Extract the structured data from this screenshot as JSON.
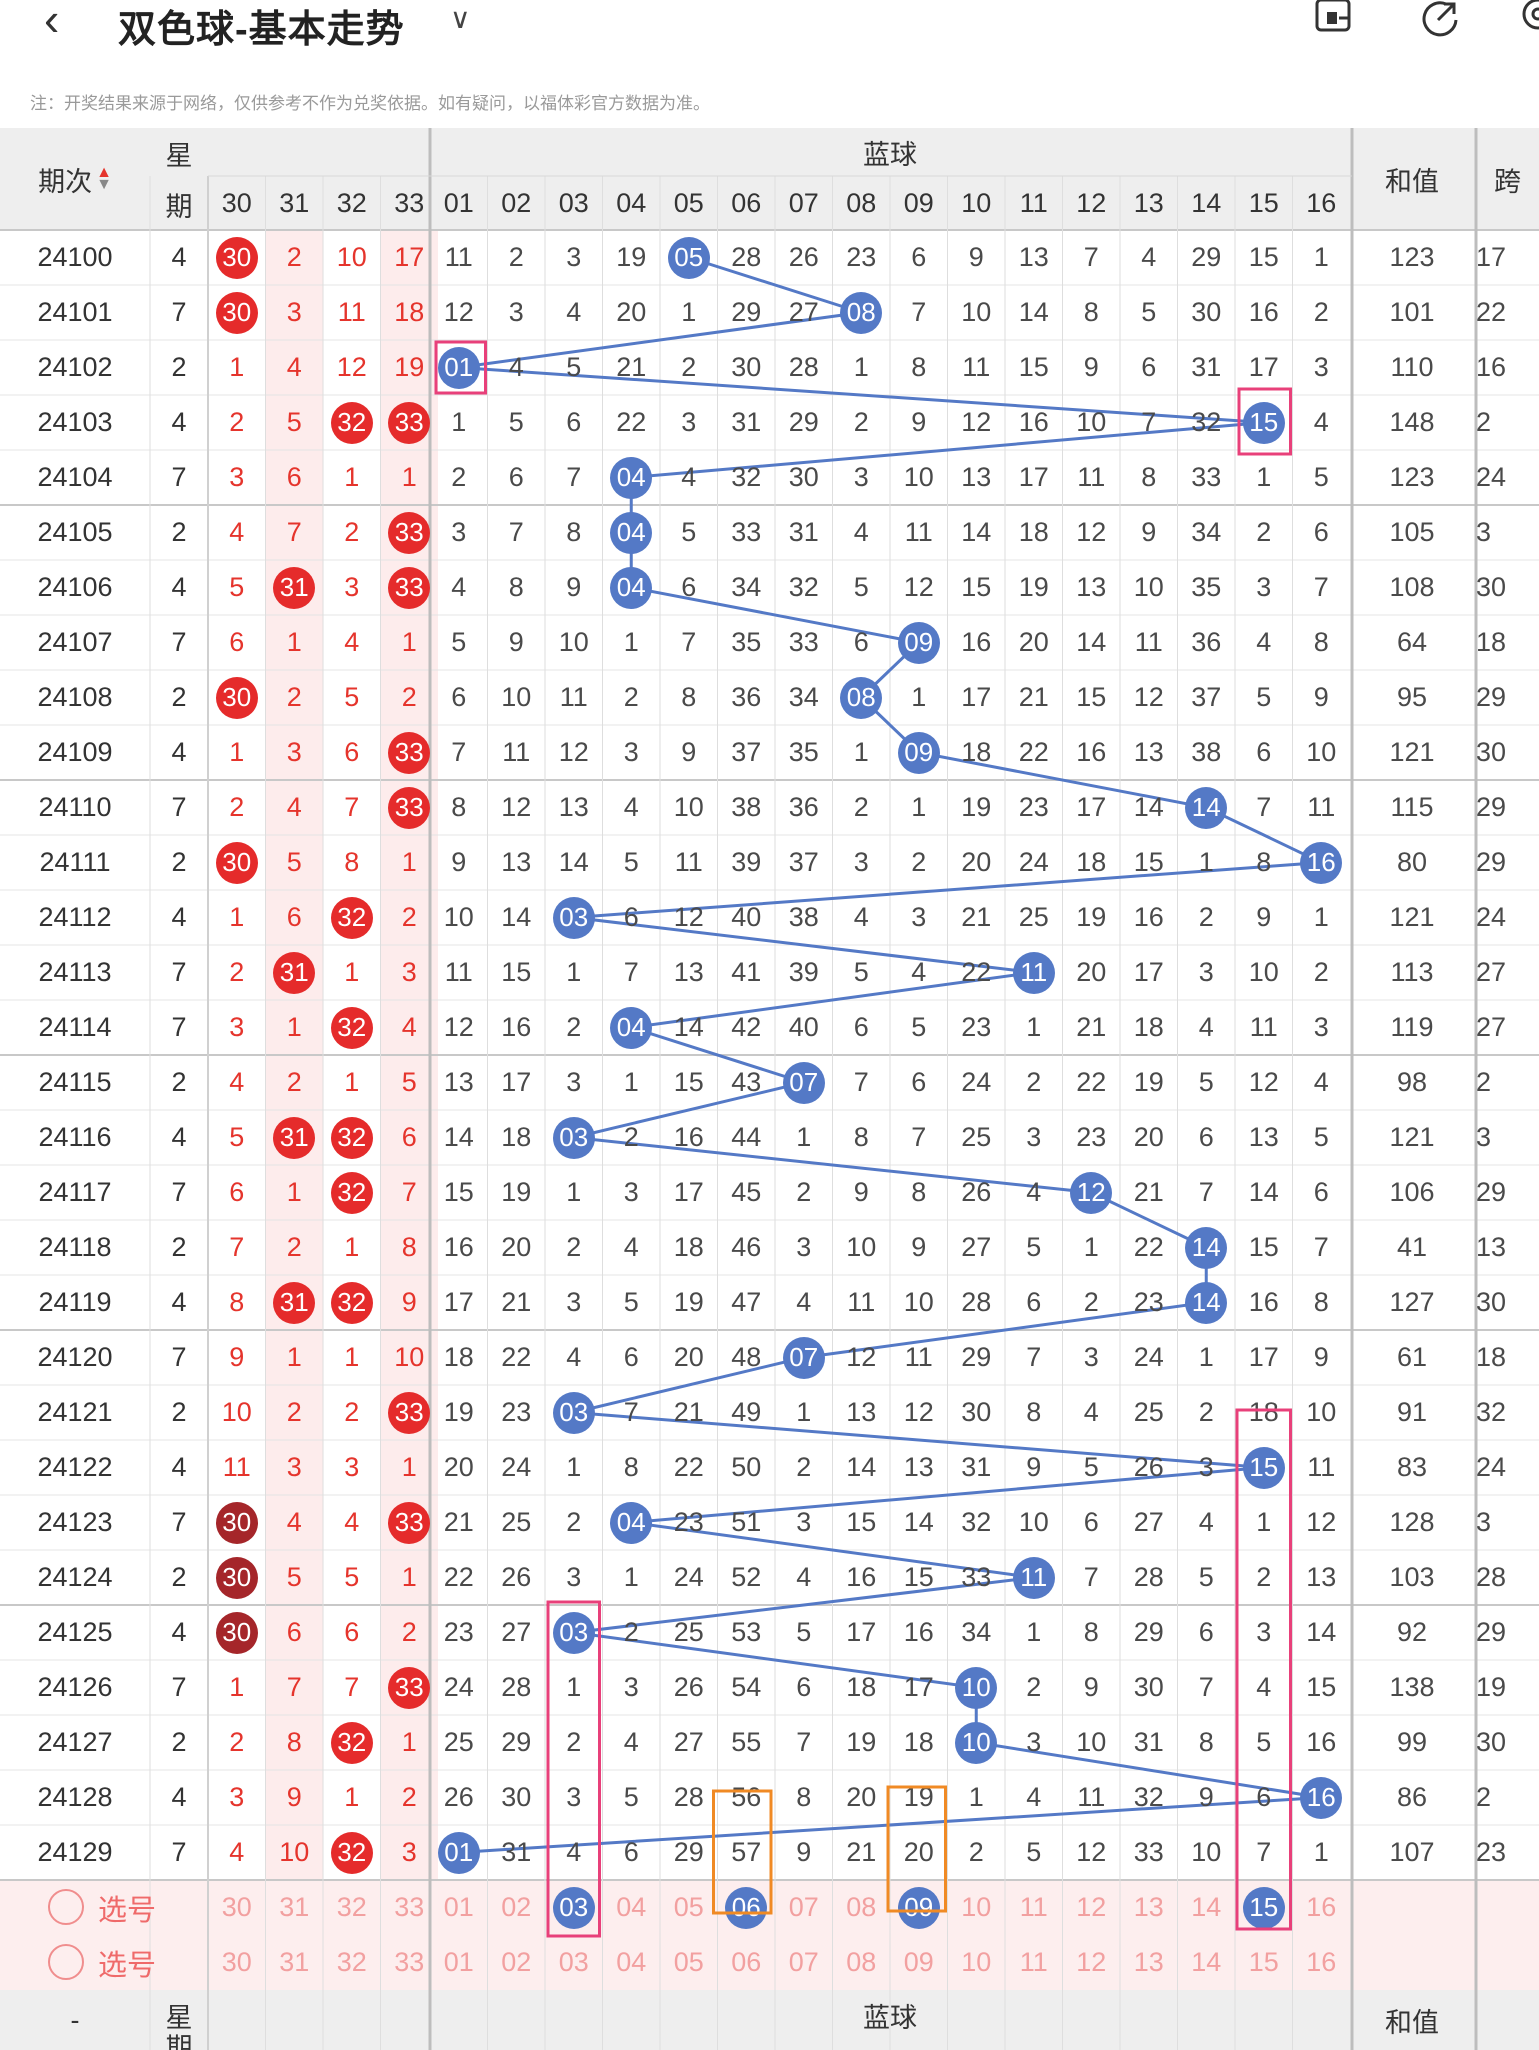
{
  "header": {
    "back_icon": "chevron-left-icon",
    "title": "双色球-基本走势",
    "dropdown_icon": "chevron-down-icon",
    "toolbar_icons": [
      "screen-icon",
      "share-icon",
      "settings-icon"
    ]
  },
  "note": "注：开奖结果来源于网络，仅供参考不作为兑奖依据。如有疑问，以福体彩官方数据为准。",
  "columns": {
    "period": "期次",
    "week_top": "星",
    "week_bottom": "期",
    "blue_title": "蓝球",
    "sum": "和值",
    "span": "跨",
    "red_tail": [
      "30",
      "31",
      "32",
      "33"
    ],
    "blue": [
      "01",
      "02",
      "03",
      "04",
      "05",
      "06",
      "07",
      "08",
      "09",
      "10",
      "11",
      "12",
      "13",
      "14",
      "15",
      "16"
    ]
  },
  "rows": [
    {
      "p": "24100",
      "w": "4",
      "r": [
        "30",
        "2",
        "10",
        "17"
      ],
      "rball": [
        0
      ],
      "b": [
        "11",
        "2",
        "3",
        "19",
        "05",
        "28",
        "26",
        "23",
        "6",
        "9",
        "13",
        "7",
        "4",
        "29",
        "15",
        "1"
      ],
      "hit": 4,
      "sum": "123",
      "span": "17"
    },
    {
      "p": "24101",
      "w": "7",
      "r": [
        "30",
        "3",
        "11",
        "18"
      ],
      "rball": [
        0
      ],
      "b": [
        "12",
        "3",
        "4",
        "20",
        "1",
        "29",
        "27",
        "08",
        "7",
        "10",
        "14",
        "8",
        "5",
        "30",
        "16",
        "2"
      ],
      "hit": 7,
      "sum": "101",
      "span": "22"
    },
    {
      "p": "24102",
      "w": "2",
      "r": [
        "1",
        "4",
        "12",
        "19"
      ],
      "rball": [],
      "b": [
        "01",
        "4",
        "5",
        "21",
        "2",
        "30",
        "28",
        "1",
        "8",
        "11",
        "15",
        "9",
        "6",
        "31",
        "17",
        "3"
      ],
      "hit": 0,
      "sum": "110",
      "span": "16"
    },
    {
      "p": "24103",
      "w": "4",
      "r": [
        "2",
        "5",
        "32",
        "33"
      ],
      "rball": [
        2,
        3
      ],
      "b": [
        "1",
        "5",
        "6",
        "22",
        "3",
        "31",
        "29",
        "2",
        "9",
        "12",
        "16",
        "10",
        "7",
        "32",
        "15",
        "4"
      ],
      "hit": 14,
      "sum": "148",
      "span": "2"
    },
    {
      "p": "24104",
      "w": "7",
      "r": [
        "3",
        "6",
        "1",
        "1"
      ],
      "rball": [],
      "b": [
        "2",
        "6",
        "7",
        "04",
        "4",
        "32",
        "30",
        "3",
        "10",
        "13",
        "17",
        "11",
        "8",
        "33",
        "1",
        "5"
      ],
      "hit": 3,
      "sum": "123",
      "span": "24"
    },
    {
      "p": "24105",
      "w": "2",
      "r": [
        "4",
        "7",
        "2",
        "33"
      ],
      "rball": [
        3
      ],
      "b": [
        "3",
        "7",
        "8",
        "04",
        "5",
        "33",
        "31",
        "4",
        "11",
        "14",
        "18",
        "12",
        "9",
        "34",
        "2",
        "6"
      ],
      "hit": 3,
      "sum": "105",
      "span": "3"
    },
    {
      "p": "24106",
      "w": "4",
      "r": [
        "5",
        "31",
        "3",
        "33"
      ],
      "rball": [
        1,
        3
      ],
      "b": [
        "4",
        "8",
        "9",
        "04",
        "6",
        "34",
        "32",
        "5",
        "12",
        "15",
        "19",
        "13",
        "10",
        "35",
        "3",
        "7"
      ],
      "hit": 3,
      "sum": "108",
      "span": "30"
    },
    {
      "p": "24107",
      "w": "7",
      "r": [
        "6",
        "1",
        "4",
        "1"
      ],
      "rball": [],
      "b": [
        "5",
        "9",
        "10",
        "1",
        "7",
        "35",
        "33",
        "6",
        "09",
        "16",
        "20",
        "14",
        "11",
        "36",
        "4",
        "8"
      ],
      "hit": 8,
      "sum": "64",
      "span": "18"
    },
    {
      "p": "24108",
      "w": "2",
      "r": [
        "30",
        "2",
        "5",
        "2"
      ],
      "rball": [
        0
      ],
      "b": [
        "6",
        "10",
        "11",
        "2",
        "8",
        "36",
        "34",
        "08",
        "1",
        "17",
        "21",
        "15",
        "12",
        "37",
        "5",
        "9"
      ],
      "hit": 7,
      "sum": "95",
      "span": "29"
    },
    {
      "p": "24109",
      "w": "4",
      "r": [
        "1",
        "3",
        "6",
        "33"
      ],
      "rball": [
        3
      ],
      "b": [
        "7",
        "11",
        "12",
        "3",
        "9",
        "37",
        "35",
        "1",
        "09",
        "18",
        "22",
        "16",
        "13",
        "38",
        "6",
        "10"
      ],
      "hit": 8,
      "sum": "121",
      "span": "30"
    },
    {
      "p": "24110",
      "w": "7",
      "r": [
        "2",
        "4",
        "7",
        "33"
      ],
      "rball": [
        3
      ],
      "b": [
        "8",
        "12",
        "13",
        "4",
        "10",
        "38",
        "36",
        "2",
        "1",
        "19",
        "23",
        "17",
        "14",
        "14",
        "7",
        "11"
      ],
      "hit": 13,
      "sum": "115",
      "span": "29"
    },
    {
      "p": "24111",
      "w": "2",
      "r": [
        "30",
        "5",
        "8",
        "1"
      ],
      "rball": [
        0
      ],
      "b": [
        "9",
        "13",
        "14",
        "5",
        "11",
        "39",
        "37",
        "3",
        "2",
        "20",
        "24",
        "18",
        "15",
        "1",
        "8",
        "16"
      ],
      "hit": 15,
      "sum": "80",
      "span": "29"
    },
    {
      "p": "24112",
      "w": "4",
      "r": [
        "1",
        "6",
        "32",
        "2"
      ],
      "rball": [
        2
      ],
      "b": [
        "10",
        "14",
        "03",
        "6",
        "12",
        "40",
        "38",
        "4",
        "3",
        "21",
        "25",
        "19",
        "16",
        "2",
        "9",
        "1"
      ],
      "hit": 2,
      "sum": "121",
      "span": "24"
    },
    {
      "p": "24113",
      "w": "7",
      "r": [
        "2",
        "31",
        "1",
        "3"
      ],
      "rball": [
        1
      ],
      "b": [
        "11",
        "15",
        "1",
        "7",
        "13",
        "41",
        "39",
        "5",
        "4",
        "22",
        "11",
        "20",
        "17",
        "3",
        "10",
        "2"
      ],
      "hit": 10,
      "sum": "113",
      "span": "27"
    },
    {
      "p": "24114",
      "w": "7",
      "r": [
        "3",
        "1",
        "32",
        "4"
      ],
      "rball": [
        2
      ],
      "b": [
        "12",
        "16",
        "2",
        "04",
        "14",
        "42",
        "40",
        "6",
        "5",
        "23",
        "1",
        "21",
        "18",
        "4",
        "11",
        "3"
      ],
      "hit": 3,
      "sum": "119",
      "span": "27"
    },
    {
      "p": "24115",
      "w": "2",
      "r": [
        "4",
        "2",
        "1",
        "5"
      ],
      "rball": [],
      "b": [
        "13",
        "17",
        "3",
        "1",
        "15",
        "43",
        "07",
        "7",
        "6",
        "24",
        "2",
        "22",
        "19",
        "5",
        "12",
        "4"
      ],
      "hit": 6,
      "sum": "98",
      "span": "2"
    },
    {
      "p": "24116",
      "w": "4",
      "r": [
        "5",
        "31",
        "32",
        "6"
      ],
      "rball": [
        1,
        2
      ],
      "b": [
        "14",
        "18",
        "03",
        "2",
        "16",
        "44",
        "1",
        "8",
        "7",
        "25",
        "3",
        "23",
        "20",
        "6",
        "13",
        "5"
      ],
      "hit": 2,
      "sum": "121",
      "span": "3"
    },
    {
      "p": "24117",
      "w": "7",
      "r": [
        "6",
        "1",
        "32",
        "7"
      ],
      "rball": [
        2
      ],
      "b": [
        "15",
        "19",
        "1",
        "3",
        "17",
        "45",
        "2",
        "9",
        "8",
        "26",
        "4",
        "12",
        "21",
        "7",
        "14",
        "6"
      ],
      "hit": 11,
      "sum": "106",
      "span": "29"
    },
    {
      "p": "24118",
      "w": "2",
      "r": [
        "7",
        "2",
        "1",
        "8"
      ],
      "rball": [],
      "b": [
        "16",
        "20",
        "2",
        "4",
        "18",
        "46",
        "3",
        "10",
        "9",
        "27",
        "5",
        "1",
        "22",
        "14",
        "15",
        "7"
      ],
      "hit": 13,
      "sum": "41",
      "span": "13"
    },
    {
      "p": "24119",
      "w": "4",
      "r": [
        "8",
        "31",
        "32",
        "9"
      ],
      "rball": [
        1,
        2
      ],
      "b": [
        "17",
        "21",
        "3",
        "5",
        "19",
        "47",
        "4",
        "11",
        "10",
        "28",
        "6",
        "2",
        "23",
        "14",
        "16",
        "8"
      ],
      "hit": 13,
      "sum": "127",
      "span": "30"
    },
    {
      "p": "24120",
      "w": "7",
      "r": [
        "9",
        "1",
        "1",
        "10"
      ],
      "rball": [],
      "b": [
        "18",
        "22",
        "4",
        "6",
        "20",
        "48",
        "07",
        "12",
        "11",
        "29",
        "7",
        "3",
        "24",
        "1",
        "17",
        "9"
      ],
      "hit": 6,
      "sum": "61",
      "span": "18"
    },
    {
      "p": "24121",
      "w": "2",
      "r": [
        "10",
        "2",
        "2",
        "33"
      ],
      "rball": [
        3
      ],
      "b": [
        "19",
        "23",
        "03",
        "7",
        "21",
        "49",
        "1",
        "13",
        "12",
        "30",
        "8",
        "4",
        "25",
        "2",
        "18",
        "10"
      ],
      "hit": 2,
      "sum": "91",
      "span": "32"
    },
    {
      "p": "24122",
      "w": "4",
      "r": [
        "11",
        "3",
        "3",
        "1"
      ],
      "rball": [],
      "b": [
        "20",
        "24",
        "1",
        "8",
        "22",
        "50",
        "2",
        "14",
        "13",
        "31",
        "9",
        "5",
        "26",
        "3",
        "15",
        "11"
      ],
      "hit": 14,
      "sum": "83",
      "span": "24"
    },
    {
      "p": "24123",
      "w": "7",
      "r": [
        "30",
        "4",
        "4",
        "33"
      ],
      "rball": [
        0,
        3
      ],
      "dark": [
        0
      ],
      "b": [
        "21",
        "25",
        "2",
        "04",
        "23",
        "51",
        "3",
        "15",
        "14",
        "32",
        "10",
        "6",
        "27",
        "4",
        "1",
        "12"
      ],
      "hit": 3,
      "sum": "128",
      "span": "3"
    },
    {
      "p": "24124",
      "w": "2",
      "r": [
        "30",
        "5",
        "5",
        "1"
      ],
      "rball": [
        0
      ],
      "dark": [
        0
      ],
      "b": [
        "22",
        "26",
        "3",
        "1",
        "24",
        "52",
        "4",
        "16",
        "15",
        "33",
        "11",
        "7",
        "28",
        "5",
        "2",
        "13"
      ],
      "hit": 10,
      "sum": "103",
      "span": "28"
    },
    {
      "p": "24125",
      "w": "4",
      "r": [
        "30",
        "6",
        "6",
        "2"
      ],
      "rball": [
        0
      ],
      "dark": [
        0
      ],
      "b": [
        "23",
        "27",
        "03",
        "2",
        "25",
        "53",
        "5",
        "17",
        "16",
        "34",
        "1",
        "8",
        "29",
        "6",
        "3",
        "14"
      ],
      "hit": 2,
      "sum": "92",
      "span": "29"
    },
    {
      "p": "24126",
      "w": "7",
      "r": [
        "1",
        "7",
        "7",
        "33"
      ],
      "rball": [
        3
      ],
      "b": [
        "24",
        "28",
        "1",
        "3",
        "26",
        "54",
        "6",
        "18",
        "17",
        "10",
        "2",
        "9",
        "30",
        "7",
        "4",
        "15"
      ],
      "hit": 9,
      "sum": "138",
      "span": "19"
    },
    {
      "p": "24127",
      "w": "2",
      "r": [
        "2",
        "8",
        "32",
        "1"
      ],
      "rball": [
        2
      ],
      "b": [
        "25",
        "29",
        "2",
        "4",
        "27",
        "55",
        "7",
        "19",
        "18",
        "10",
        "3",
        "10",
        "31",
        "8",
        "5",
        "16"
      ],
      "hit": 9,
      "sum": "99",
      "span": "30"
    },
    {
      "p": "24128",
      "w": "4",
      "r": [
        "3",
        "9",
        "1",
        "2"
      ],
      "rball": [],
      "b": [
        "26",
        "30",
        "3",
        "5",
        "28",
        "56",
        "8",
        "20",
        "19",
        "1",
        "4",
        "11",
        "32",
        "9",
        "6",
        "16"
      ],
      "hit": 15,
      "sum": "86",
      "span": "2"
    },
    {
      "p": "24129",
      "w": "7",
      "r": [
        "4",
        "10",
        "32",
        "3"
      ],
      "rball": [
        2
      ],
      "b": [
        "01",
        "31",
        "4",
        "6",
        "29",
        "57",
        "9",
        "21",
        "20",
        "2",
        "5",
        "12",
        "33",
        "10",
        "7",
        "1"
      ],
      "hit": 0,
      "sum": "107",
      "span": "23"
    }
  ],
  "select_rows": [
    {
      "label": "选号",
      "picked": [
        2,
        5,
        8,
        14
      ]
    },
    {
      "label": "选号",
      "picked": []
    }
  ],
  "footer": {
    "period": "-",
    "week_top": "星",
    "week_bottom": "期",
    "blue_title": "蓝球",
    "sum": "和值"
  },
  "colors": {
    "red_ball": "#e52b2b",
    "red_ball_dark": "#a5262a",
    "blue_ball": "#5479c6",
    "line": "#5479c6",
    "pink_box": "#e8407a",
    "orange_box": "#f08a24",
    "header_bg": "#eeeeee",
    "red_col_bg": "#fdecec",
    "select_bg": "#fdeeee"
  }
}
